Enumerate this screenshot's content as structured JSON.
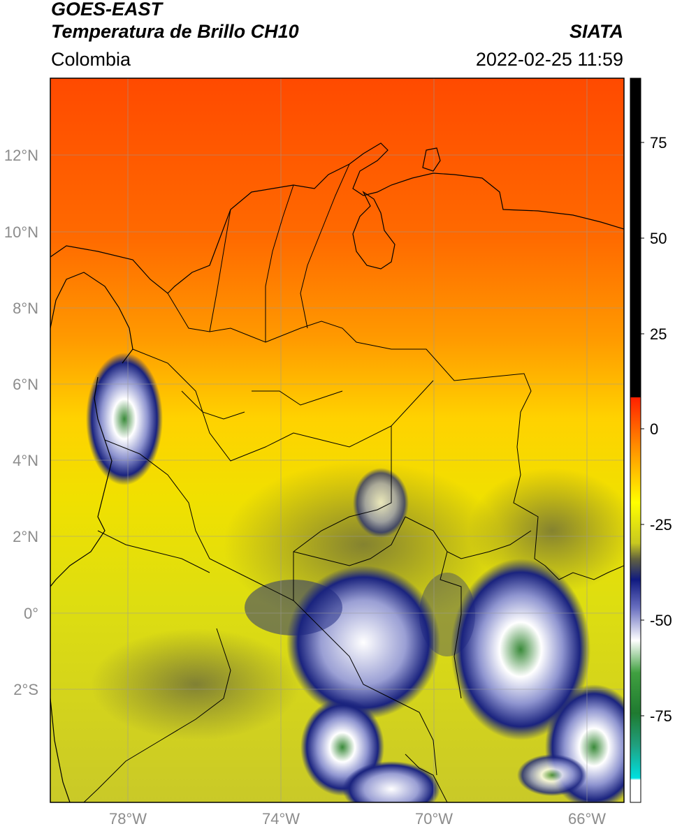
{
  "header": {
    "satellite": "GOES-EAST",
    "product": "Temperatura de Brillo CH10",
    "organization": "SIATA",
    "region": "Colombia",
    "timestamp": "2022-02-25 11:59"
  },
  "axes": {
    "lat_labels": [
      "12°N",
      "10°N",
      "8°N",
      "6°N",
      "4°N",
      "2°N",
      "0°",
      "2°S"
    ],
    "lon_labels": [
      "78°W",
      "74°W",
      "70°W",
      "66°W"
    ]
  },
  "colorbar": {
    "ticks": [
      "75",
      "50",
      "25",
      "0",
      "-25",
      "-50",
      "-75"
    ]
  },
  "colors": {
    "warm_north": "#ff4a00",
    "mid": "#ffd200",
    "south": "#d6d61e",
    "cold_cloud": "#1a237e",
    "coldest_cloud": "#2e7d32"
  }
}
